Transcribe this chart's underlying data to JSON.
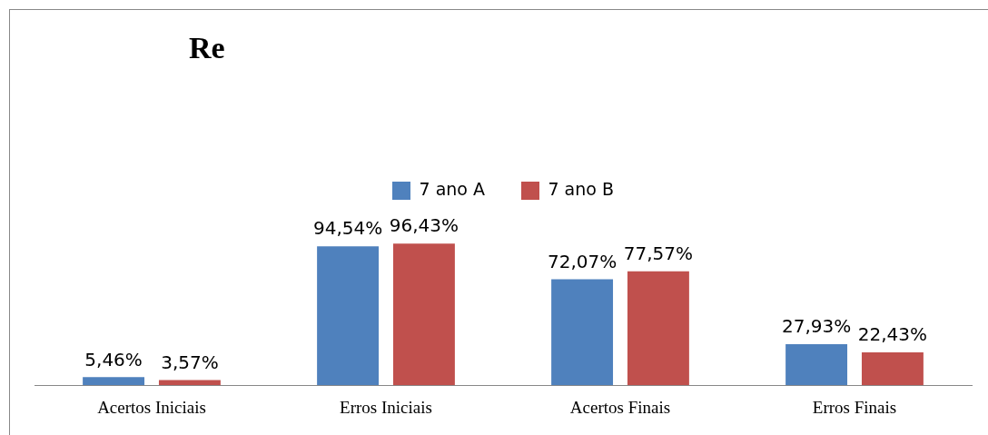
{
  "chart_data": {
    "type": "bar",
    "title": "Re",
    "categories": [
      "Acertos Iniciais",
      "Erros Iniciais",
      "Acertos Finais",
      "Erros Finais"
    ],
    "series": [
      {
        "name": "7 ano A",
        "color": "#4f81bd",
        "values": [
          5.46,
          94.54,
          72.07,
          27.93
        ],
        "value_labels": [
          "5,46%",
          "94,54%",
          "72,07%",
          "27,93%"
        ]
      },
      {
        "name": "7 ano B",
        "color": "#c0504d",
        "values": [
          3.57,
          96.43,
          77.57,
          22.43
        ],
        "value_labels": [
          "3,57%",
          "96,43%",
          "77,57%",
          "22,43%"
        ]
      }
    ],
    "legend": "top",
    "grid": false
  }
}
